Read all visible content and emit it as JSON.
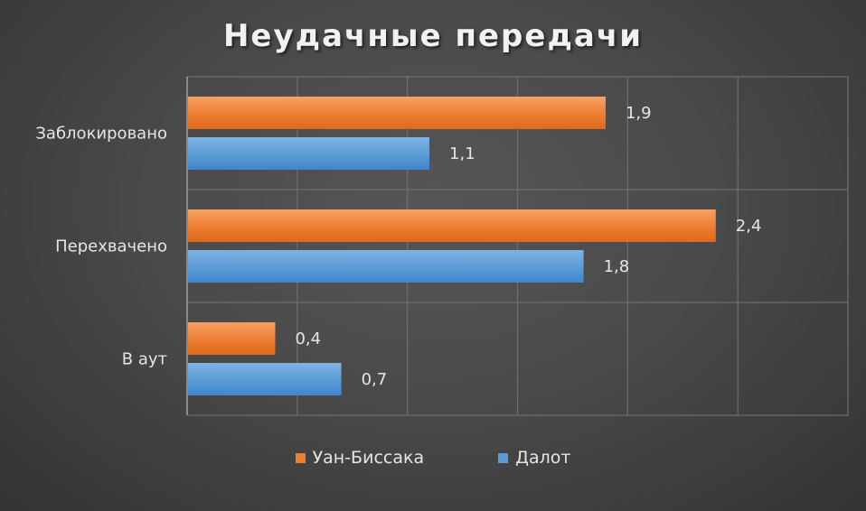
{
  "chart_data": {
    "type": "bar",
    "orientation": "horizontal",
    "title": "Неудачные передачи",
    "categories": [
      "Заблокировано",
      "Перехвачено",
      "В аут"
    ],
    "series": [
      {
        "name": "Уан-Биссака",
        "values": [
          1.9,
          2.4,
          0.4
        ],
        "value_labels": [
          "1,9",
          "2,4",
          "0,4"
        ],
        "color": "#ED7D31"
      },
      {
        "name": "Далот",
        "values": [
          1.1,
          1.8,
          0.7
        ],
        "value_labels": [
          "1,1",
          "1,8",
          "0,7"
        ],
        "color": "#5B9BD5"
      }
    ],
    "xlim": [
      0,
      3
    ],
    "grid": true,
    "legend_position": "bottom",
    "background": "#4a4a4a",
    "gridline_color": "#6e6e6e"
  }
}
